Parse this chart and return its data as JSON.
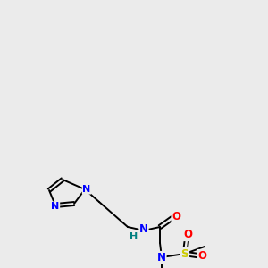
{
  "background_color": "#ebebeb",
  "bond_color": "#000000",
  "atom_colors": {
    "N": "#0000ff",
    "O": "#ff0000",
    "S": "#cccc00",
    "H": "#008080",
    "C": "#000000"
  },
  "figsize": [
    3.0,
    3.0
  ],
  "dpi": 100
}
